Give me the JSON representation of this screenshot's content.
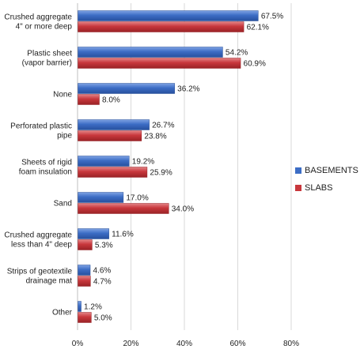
{
  "chart_data": {
    "type": "bar",
    "orientation": "horizontal",
    "categories": [
      "Crushed aggregate\n4\" or more deep",
      "Plastic sheet\n(vapor barrier)",
      "None",
      "Perforated plastic\npipe",
      "Sheets of rigid\nfoam insulation",
      "Sand",
      "Crushed aggregate\nless than 4\" deep",
      "Strips of geotextile\ndrainage mat",
      "Other"
    ],
    "series": [
      {
        "name": "BASEMENTS",
        "color": "#3C6DC5",
        "values": [
          67.5,
          54.2,
          36.2,
          26.7,
          19.2,
          17.0,
          11.6,
          4.6,
          1.2
        ],
        "labels": [
          "67.5%",
          "54.2%",
          "36.2%",
          "26.7%",
          "19.2%",
          "17.0%",
          "11.6%",
          "4.6%",
          "1.2%"
        ]
      },
      {
        "name": "SLABS",
        "color": "#C8373C",
        "values": [
          62.1,
          60.9,
          8.0,
          23.8,
          25.9,
          34.0,
          5.3,
          4.7,
          5.0
        ],
        "labels": [
          "62.1%",
          "60.9%",
          "8.0%",
          "23.8%",
          "25.9%",
          "34.0%",
          "5.3%",
          "4.7%",
          "5.0%"
        ]
      }
    ],
    "xlim": [
      0,
      80
    ],
    "xticks": [
      0,
      20,
      40,
      60,
      80
    ],
    "xtick_labels": [
      "0%",
      "20%",
      "40%",
      "60%",
      "80%"
    ],
    "grid": true,
    "legend_position": "right"
  }
}
